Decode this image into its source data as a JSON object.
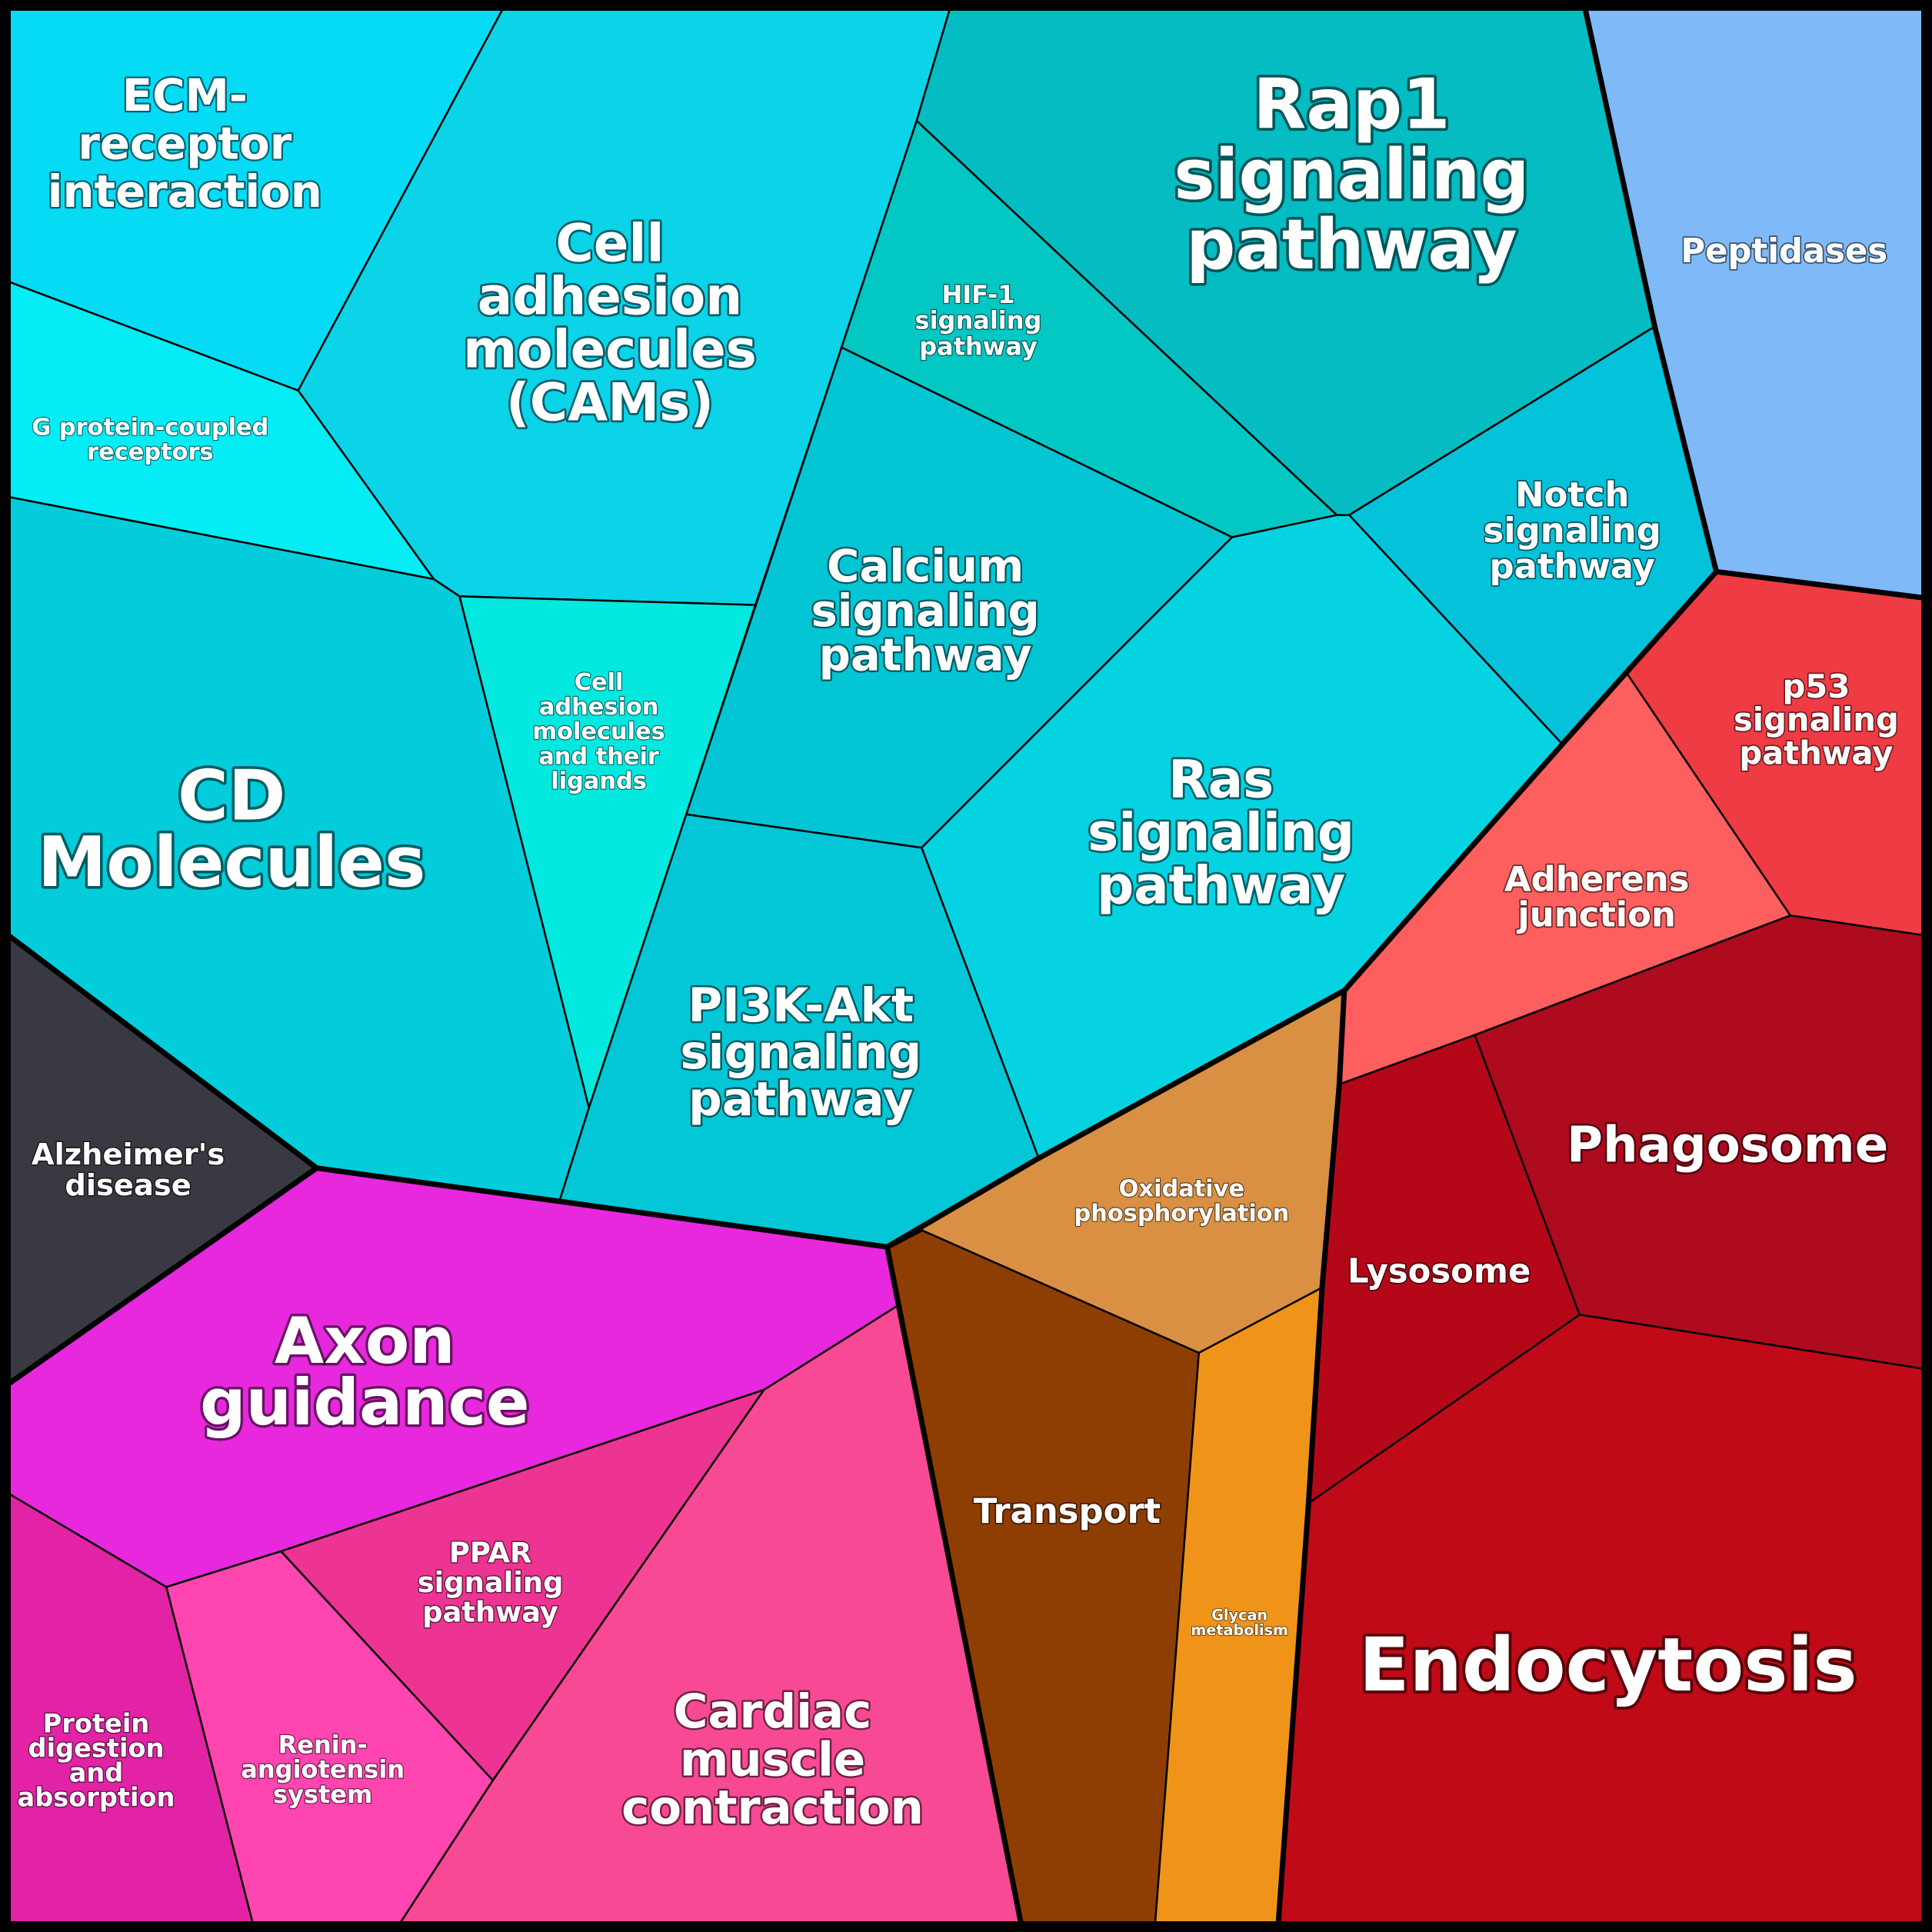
{
  "colors": {
    "cyan_group": "#05d0e0",
    "magenta_group": "#e82ae0",
    "brown_group": "#8b4000",
    "red_group": "#c00a1a",
    "dark_group": "#3a3a44",
    "blue_group": "#7fb8f8"
  },
  "cells": {
    "ecm": {
      "label": [
        "ECM-",
        "receptor",
        "interaction"
      ],
      "color": "#06dbf5"
    },
    "cams": {
      "label": [
        "Cell",
        "adhesion",
        "molecules",
        "(CAMs)"
      ],
      "color": "#0bd3e8"
    },
    "hif1": {
      "label": [
        "HIF-1",
        "signaling",
        "pathway"
      ],
      "color": "#02c7c3"
    },
    "rap1": {
      "label": [
        "Rap1",
        "signaling",
        "pathway"
      ],
      "color": "#04bcc2"
    },
    "peptidases": {
      "label": [
        "Peptidases"
      ],
      "color": "#7fb9f8"
    },
    "gpcr": {
      "label": [
        "G protein-coupled",
        "receptors"
      ],
      "color": "#04edf5"
    },
    "cd": {
      "label": [
        "CD",
        "Molecules"
      ],
      "color": "#03cddb"
    },
    "cam_ligands": {
      "label": [
        "Cell",
        "adhesion",
        "molecules",
        "and their",
        "ligands"
      ],
      "color": "#03e8df"
    },
    "calcium": {
      "label": [
        "Calcium",
        "signaling",
        "pathway"
      ],
      "color": "#03c5d4"
    },
    "notch": {
      "label": [
        "Notch",
        "signaling",
        "pathway"
      ],
      "color": "#03c2da"
    },
    "ras": {
      "label": [
        "Ras",
        "signaling",
        "pathway"
      ],
      "color": "#06d3e2"
    },
    "pi3k": {
      "label": [
        "PI3K-Akt",
        "signaling",
        "pathway"
      ],
      "color": "#03c6d6"
    },
    "alzheimers": {
      "label": [
        "Alzheimer's",
        "disease"
      ],
      "color": "#393941"
    },
    "axon": {
      "label": [
        "Axon",
        "guidance"
      ],
      "color": "#e728dd"
    },
    "ppar": {
      "label": [
        "PPAR",
        "signaling",
        "pathway"
      ],
      "color": "#ee3493"
    },
    "protein_digestion": {
      "label": [
        "Protein",
        "digestion",
        "and",
        "absorption"
      ],
      "color": "#e223a6"
    },
    "renin": {
      "label": [
        "Renin-",
        "angiotensin",
        "system"
      ],
      "color": "#fe45b0"
    },
    "cardiac": {
      "label": [
        "Cardiac",
        "muscle",
        "contraction"
      ],
      "color": "#f84994"
    },
    "oxphos": {
      "label": [
        "Oxidative",
        "phosphorylation"
      ],
      "color": "#d99043"
    },
    "transport": {
      "label": [
        "Transport"
      ],
      "color": "#8f3e03"
    },
    "glycan": {
      "label": [
        "Glycan",
        "metabolism"
      ],
      "color": "#f09419"
    },
    "p53": {
      "label": [
        "p53",
        "signaling",
        "pathway"
      ],
      "color": "#ef3b44"
    },
    "adherens": {
      "label": [
        "Adherens",
        "junction"
      ],
      "color": "#fd5e5e"
    },
    "lysosome": {
      "label": [
        "Lysosome"
      ],
      "color": "#b40819"
    },
    "phagosome": {
      "label": [
        "Phagosome"
      ],
      "color": "#ae0b1f"
    },
    "endocytosis": {
      "label": [
        "Endocytosis"
      ],
      "color": "#c00a18"
    }
  }
}
